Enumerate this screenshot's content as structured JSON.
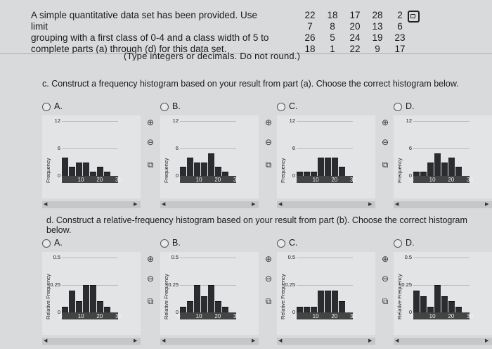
{
  "problem": {
    "lines": [
      "A simple quantitative data set has been provided. Use limit",
      "grouping with a first class of 0-4 and a class width of 5 to",
      "complete parts (a) through (d) for this data set."
    ]
  },
  "data_rows": [
    [
      "22",
      "18",
      "17",
      "28",
      "2"
    ],
    [
      "7",
      "8",
      "20",
      "13",
      "6"
    ],
    [
      "26",
      "5",
      "24",
      "19",
      "23"
    ],
    [
      "18",
      "1",
      "22",
      "9",
      "17"
    ]
  ],
  "clipped_note": "(Type integers or decimals. Do not round.)",
  "part_c": {
    "question": "c. Construct a frequency histogram based on your result from part (a). Choose the correct histogram below.",
    "ylabel": "Frequency",
    "yticks": [
      "12",
      "6",
      "0"
    ],
    "xticks": [
      "0",
      "10",
      "20",
      "30"
    ],
    "options": [
      {
        "letter": "A.",
        "bars": [
          4,
          2,
          3,
          3,
          1,
          2,
          1
        ]
      },
      {
        "letter": "B.",
        "bars": [
          2,
          4,
          3,
          3,
          5,
          2,
          1
        ]
      },
      {
        "letter": "C.",
        "bars": [
          1,
          1,
          1,
          4,
          4,
          4,
          2
        ]
      },
      {
        "letter": "D.",
        "bars": [
          1,
          1,
          3,
          5,
          3,
          4,
          2
        ]
      }
    ]
  },
  "part_d": {
    "question": "d. Construct a relative-frequency histogram based on your result from part (b). Choose the correct histogram below.",
    "ylabel": "Relative Frequency",
    "yticks": [
      "0.5",
      "0.25",
      "0"
    ],
    "xticks": [
      "0",
      "10",
      "20",
      "30"
    ],
    "options": [
      {
        "letter": "A.",
        "bars": [
          0.05,
          0.2,
          0.1,
          0.25,
          0.25,
          0.1,
          0.05
        ]
      },
      {
        "letter": "B.",
        "bars": [
          0.05,
          0.1,
          0.25,
          0.15,
          0.25,
          0.1,
          0.05
        ]
      },
      {
        "letter": "C.",
        "bars": [
          0.05,
          0.05,
          0.05,
          0.2,
          0.2,
          0.2,
          0.1
        ]
      },
      {
        "letter": "D.",
        "bars": [
          0.2,
          0.15,
          0.05,
          0.25,
          0.15,
          0.1,
          0.05
        ]
      }
    ]
  },
  "icons": {
    "zoom_in": "zoom-in-icon",
    "zoom_out": "zoom-out-icon",
    "expand": "expand-icon",
    "copy": "copy-icon"
  }
}
